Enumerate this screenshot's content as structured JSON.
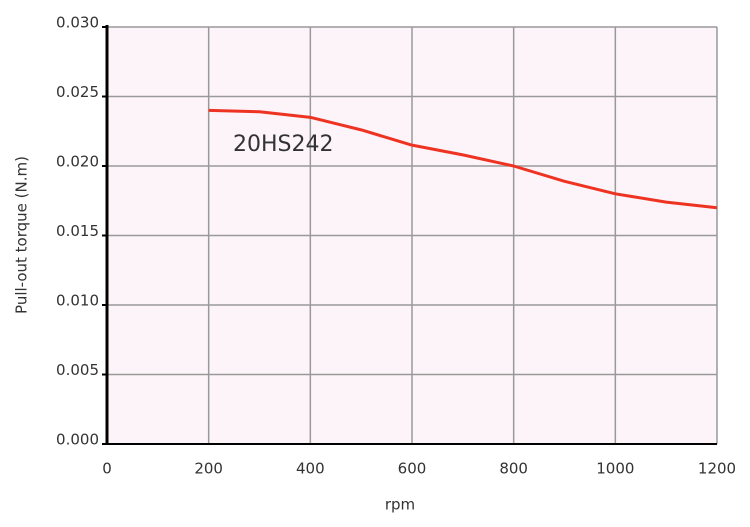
{
  "chart_data": {
    "type": "line",
    "x_label": "rpm",
    "y_label": "Pull-out torque (N.m)",
    "annotation": "20HS242",
    "x": [
      200,
      300,
      400,
      500,
      600,
      700,
      800,
      900,
      1000,
      1100,
      1200
    ],
    "series": [
      {
        "name": "20HS242",
        "color": "#ee3322",
        "values": [
          0.024,
          0.0239,
          0.0235,
          0.0226,
          0.0215,
          0.0208,
          0.02,
          0.0189,
          0.018,
          0.0174,
          0.017
        ]
      }
    ],
    "xlim": [
      0,
      1200
    ],
    "xticks": [
      0,
      200,
      400,
      600,
      800,
      1000,
      1200
    ],
    "ylim": [
      0,
      0.03
    ],
    "yticks": [
      {
        "value": 0,
        "label": "0.000"
      },
      {
        "value": 0.005,
        "label": "0.005"
      },
      {
        "value": 0.01,
        "label": "0.010"
      },
      {
        "value": 0.015,
        "label": "0.015"
      },
      {
        "value": 0.02,
        "label": "0.020"
      },
      {
        "value": 0.025,
        "label": "0.025"
      },
      {
        "value": 0.03,
        "label": "0.030"
      }
    ],
    "grid": true,
    "background": "#fcf4f8"
  }
}
